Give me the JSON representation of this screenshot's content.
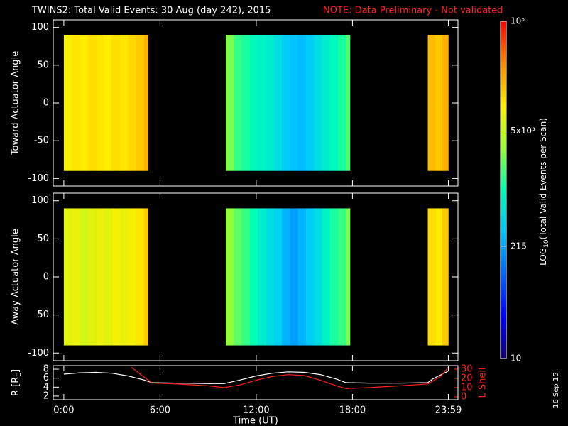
{
  "title": "TWINS2: Total Valid Events: 30 Aug (day 242), 2015",
  "note": "NOTE: Data Preliminary - Not validated",
  "date_stamp": "16 Sep 15",
  "colorbar": {
    "label_parts": [
      "LOG",
      "10",
      "(Total Valid Events per Scan)"
    ],
    "log": true,
    "clim": [
      10,
      100000
    ],
    "ticks": [
      10,
      215,
      {
        "value": 5000,
        "label": "5x10³"
      },
      {
        "value": 100000,
        "label": "10⁵"
      }
    ],
    "colormap": [
      "#14006e",
      "#0000ff",
      "#0064ff",
      "#00c8ff",
      "#00ffb4",
      "#9aff32",
      "#ffee00",
      "#ff8c00",
      "#ff0000"
    ]
  },
  "chart_data": [
    {
      "type": "heatmap",
      "ylabel": "Toward Actuator Angle",
      "x_start": [
        0,
        0.5,
        1,
        1.5,
        2,
        2.5,
        3,
        3.5,
        4,
        4.5,
        5,
        10.1,
        10.6,
        11.1,
        11.6,
        12.1,
        12.6,
        13.1,
        13.6,
        14.1,
        14.6,
        15.1,
        15.6,
        16.1,
        16.6,
        17.1,
        17.6,
        22.7,
        23.2,
        23.6
      ],
      "x_end": [
        0.5,
        1,
        1.5,
        2,
        2.5,
        3,
        3.5,
        4,
        4.5,
        5,
        5.25,
        10.6,
        11.1,
        11.6,
        12.1,
        12.6,
        13.1,
        13.6,
        14.1,
        14.6,
        15.1,
        15.6,
        16.1,
        16.6,
        17.1,
        17.6,
        17.85,
        23.2,
        23.6,
        23.98
      ],
      "angle_range": [
        -90,
        90
      ],
      "values": [
        9000,
        11000,
        10000,
        12000,
        11000,
        10000,
        12000,
        11000,
        13000,
        15000,
        20000,
        2500,
        1500,
        1200,
        900,
        800,
        700,
        500,
        350,
        300,
        280,
        350,
        500,
        700,
        900,
        1200,
        1800,
        18000,
        15000,
        20000
      ],
      "xlim": [
        -0.66,
        24.58
      ],
      "xticks": [
        0,
        6,
        12,
        18,
        23.983
      ],
      "ylim": [
        -110,
        110
      ],
      "yticks": [
        -100,
        -50,
        0,
        50,
        100
      ]
    },
    {
      "type": "heatmap",
      "ylabel": "Away Actuator Angle",
      "x_start": [
        0,
        0.5,
        1,
        1.5,
        2,
        2.5,
        3,
        3.5,
        4,
        4.5,
        5,
        10.1,
        10.6,
        11.1,
        11.6,
        12.1,
        12.6,
        13.1,
        13.6,
        14.1,
        14.6,
        15.1,
        15.6,
        16.1,
        16.6,
        17.1,
        17.6,
        22.7,
        23.2,
        23.6
      ],
      "x_end": [
        0.5,
        1,
        1.5,
        2,
        2.5,
        3,
        3.5,
        4,
        4.5,
        5,
        5.25,
        10.6,
        11.1,
        11.6,
        12.1,
        12.6,
        13.1,
        13.6,
        14.1,
        14.6,
        15.1,
        15.6,
        16.1,
        16.6,
        17.1,
        17.6,
        17.85,
        23.2,
        23.6,
        23.98
      ],
      "angle_range": [
        -90,
        90
      ],
      "values": [
        7000,
        8000,
        6000,
        7000,
        8000,
        7000,
        9000,
        8000,
        9000,
        11000,
        15000,
        3000,
        2000,
        1500,
        1000,
        700,
        500,
        400,
        250,
        200,
        250,
        350,
        500,
        800,
        1200,
        1500,
        2500,
        12000,
        10000,
        15000
      ],
      "xlim": [
        -0.66,
        24.58
      ],
      "xticks": [
        0,
        6,
        12,
        18,
        23.983
      ],
      "ylim": [
        -110,
        110
      ],
      "yticks": [
        -100,
        -50,
        0,
        50,
        100
      ]
    },
    {
      "type": "line",
      "xlabel": "Time (UT)",
      "ylabel_parts": [
        "R [R",
        "E",
        "]"
      ],
      "y2label": "L Shell",
      "xlim": [
        -0.66,
        24.58
      ],
      "xticks": [
        {
          "value": 0,
          "label": "0:00"
        },
        {
          "value": 6,
          "label": "6:00"
        },
        {
          "value": 12,
          "label": "12:00"
        },
        {
          "value": 18,
          "label": "18:00"
        },
        {
          "value": 23.983,
          "label": "23:59"
        }
      ],
      "ylim": [
        1.2,
        8.8
      ],
      "yticks": [
        2,
        4,
        6,
        8
      ],
      "y2lim": [
        -3.1,
        33.8
      ],
      "y2ticks": [
        0,
        10,
        20,
        30
      ],
      "y2color": "#ff2020",
      "series": [
        {
          "name": "R",
          "color": "#ffffff",
          "x": [
            0,
            1,
            2,
            3,
            4,
            5,
            5.5,
            7,
            9,
            10,
            11,
            12,
            13,
            14,
            15,
            16,
            17,
            17.6,
            19,
            21,
            22.7,
            23,
            23.98
          ],
          "values": [
            6.9,
            7.2,
            7.3,
            7.1,
            6.5,
            5.6,
            5.0,
            4.9,
            4.8,
            4.8,
            5.6,
            6.5,
            7.1,
            7.4,
            7.3,
            6.8,
            5.8,
            5.0,
            4.9,
            4.9,
            5.0,
            5.8,
            7.6
          ]
        },
        {
          "name": "L Shell",
          "color": "#ff2020",
          "axis": "y2",
          "x": [
            4.2,
            5.5,
            7,
            9,
            10,
            11,
            12,
            13,
            14,
            15,
            16,
            17,
            17.6,
            19,
            21,
            22.7,
            23.5,
            23.98
          ],
          "values": [
            32,
            15,
            14,
            12,
            10,
            13,
            18,
            22,
            24,
            23,
            18,
            12,
            9,
            10,
            12,
            14,
            22,
            32
          ]
        }
      ]
    }
  ]
}
